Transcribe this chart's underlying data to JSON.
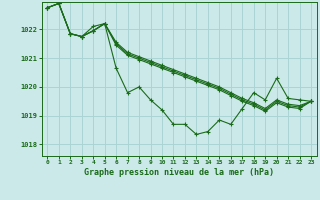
{
  "title": "Graphe pression niveau de la mer (hPa)",
  "background_color": "#cce9e9",
  "grid_color": "#aad4d4",
  "line_color": "#1a6b1a",
  "xlim": [
    -0.5,
    23.5
  ],
  "ylim": [
    1017.6,
    1022.95
  ],
  "yticks": [
    1018,
    1019,
    1020,
    1021,
    1022
  ],
  "xticks": [
    0,
    1,
    2,
    3,
    4,
    5,
    6,
    7,
    8,
    9,
    10,
    11,
    12,
    13,
    14,
    15,
    16,
    17,
    18,
    19,
    20,
    21,
    22,
    23
  ],
  "s1": [
    1022.75,
    1022.9,
    1021.85,
    1021.75,
    1022.1,
    1022.2,
    1020.65,
    1019.8,
    1020.0,
    1019.55,
    1019.2,
    1018.7,
    1018.7,
    1018.35,
    1018.45,
    1018.85,
    1018.7,
    1019.25,
    1019.8,
    1019.55,
    1020.3,
    1019.6,
    1019.55,
    1019.5
  ],
  "s2": [
    1022.75,
    1022.9,
    1021.85,
    1021.75,
    1021.95,
    1022.2,
    1021.5,
    1021.15,
    1021.0,
    1020.85,
    1020.7,
    1020.55,
    1020.4,
    1020.25,
    1020.1,
    1019.95,
    1019.75,
    1019.55,
    1019.4,
    1019.2,
    1019.5,
    1019.35,
    1019.3,
    1019.5
  ],
  "s3": [
    1022.75,
    1022.9,
    1021.85,
    1021.75,
    1021.95,
    1022.2,
    1021.45,
    1021.1,
    1020.95,
    1020.8,
    1020.65,
    1020.5,
    1020.35,
    1020.2,
    1020.05,
    1019.9,
    1019.7,
    1019.5,
    1019.35,
    1019.15,
    1019.45,
    1019.3,
    1019.25,
    1019.5
  ],
  "s4": [
    1022.75,
    1022.9,
    1021.85,
    1021.75,
    1021.95,
    1022.2,
    1021.55,
    1021.2,
    1021.05,
    1020.9,
    1020.75,
    1020.6,
    1020.45,
    1020.3,
    1020.15,
    1020.0,
    1019.8,
    1019.6,
    1019.45,
    1019.25,
    1019.55,
    1019.4,
    1019.35,
    1019.5
  ]
}
